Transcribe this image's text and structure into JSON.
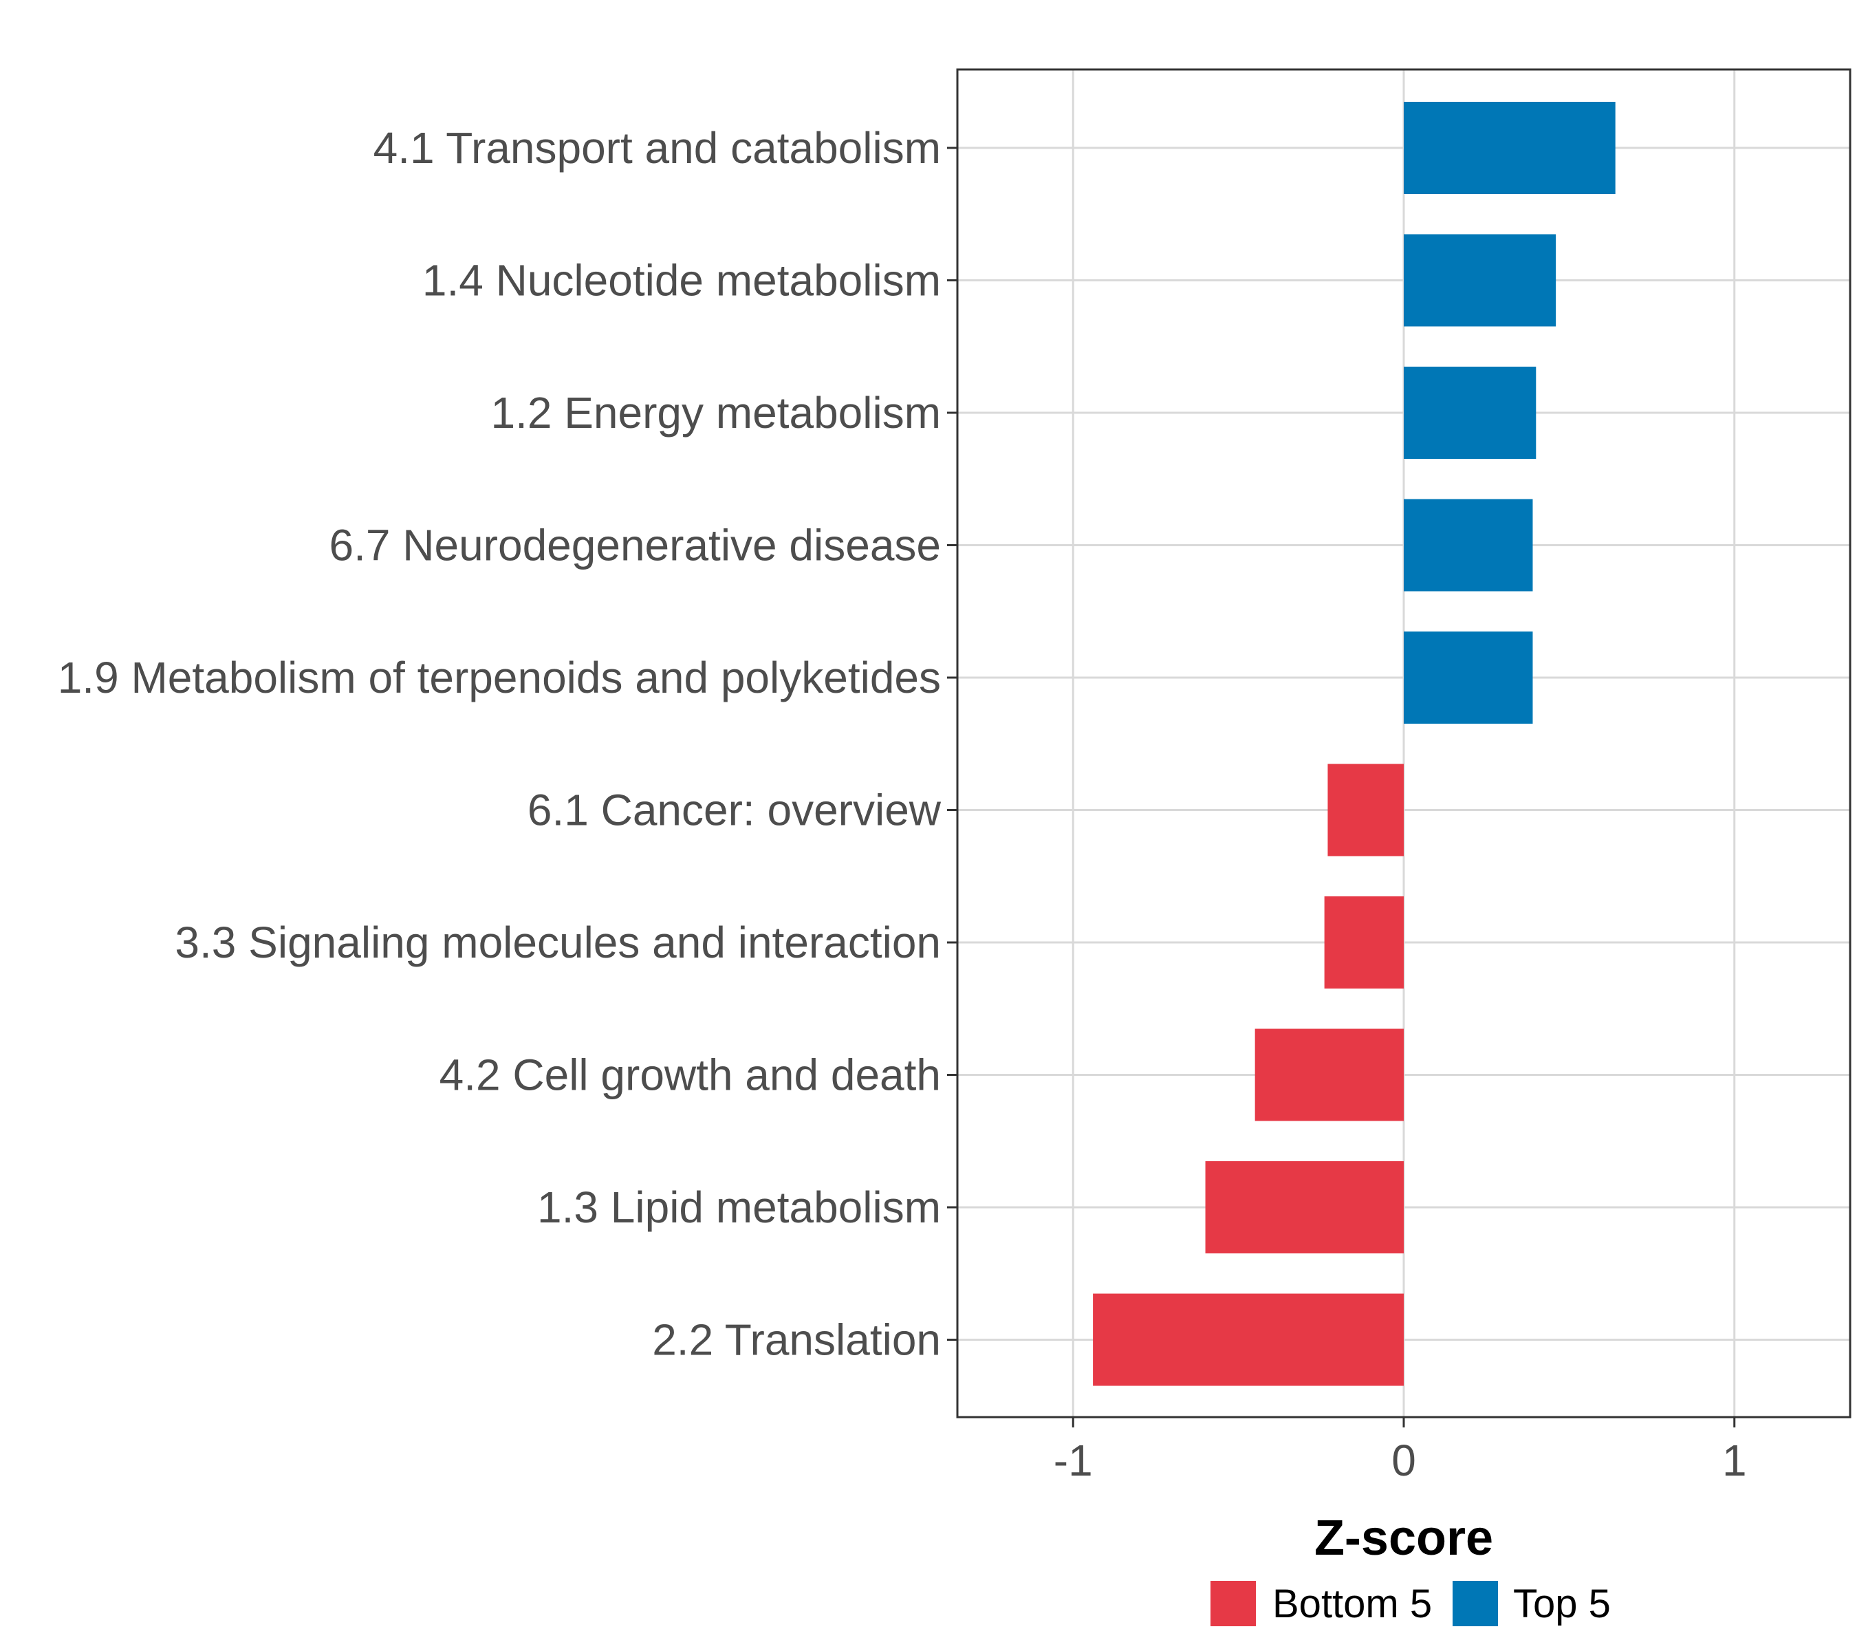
{
  "chart_data": {
    "type": "bar",
    "orientation": "horizontal",
    "title": "",
    "xlabel": "Z-score",
    "ylabel": "",
    "xlim": [
      -1.35,
      1.35
    ],
    "xticks": [
      -1,
      0,
      1
    ],
    "xtick_labels": [
      "-1",
      "0",
      "1"
    ],
    "grid": true,
    "legend_position": "bottom",
    "categories": [
      "4.1 Transport and catabolism",
      "1.4 Nucleotide metabolism",
      "1.2 Energy metabolism",
      "6.7 Neurodegenerative disease",
      "1.9 Metabolism of terpenoids and polyketides",
      "6.1 Cancer: overview",
      "3.3 Signaling molecules and interaction",
      "4.2 Cell growth and death",
      "1.3 Lipid metabolism",
      "2.2 Translation"
    ],
    "values": [
      0.64,
      0.46,
      0.4,
      0.39,
      0.39,
      -0.23,
      -0.24,
      -0.45,
      -0.6,
      -0.94
    ],
    "groups": [
      "Top 5",
      "Top 5",
      "Top 5",
      "Top 5",
      "Top 5",
      "Bottom 5",
      "Bottom 5",
      "Bottom 5",
      "Bottom 5",
      "Bottom 5"
    ],
    "legend": [
      {
        "name": "Bottom 5",
        "color": "#e63946"
      },
      {
        "name": "Top 5",
        "color": "#0077b6"
      }
    ],
    "colors": {
      "Top 5": "#0077b6",
      "Bottom 5": "#e63946"
    }
  }
}
